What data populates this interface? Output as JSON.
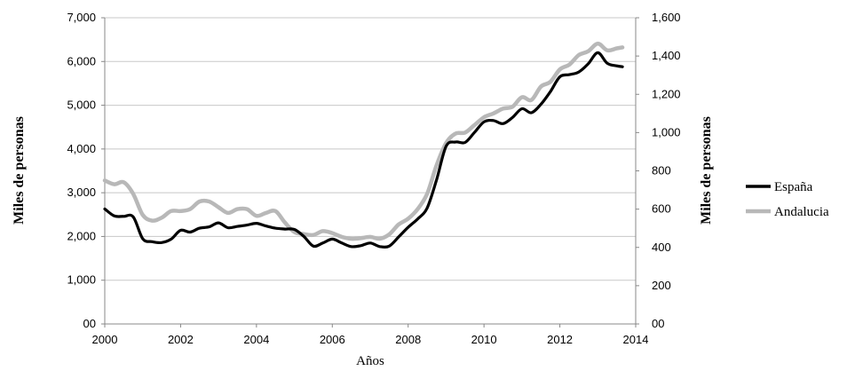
{
  "chart_data": {
    "type": "line",
    "xlabel": "Años",
    "ylabel_left": "Miles de personas",
    "ylabel_right": "Miles de personas",
    "xlim": [
      2000,
      2014
    ],
    "ylim_left": [
      0,
      7000
    ],
    "ylim_right": [
      0,
      1600
    ],
    "x_ticks": [
      "2000",
      "2002",
      "2004",
      "2006",
      "2008",
      "2010",
      "2012",
      "2014"
    ],
    "y_left_ticks": [
      "00",
      "1,000",
      "2,000",
      "3,000",
      "4,000",
      "5,000",
      "6,000",
      "7,000"
    ],
    "y_right_ticks": [
      "00",
      "200",
      "400",
      "600",
      "800",
      "1,000",
      "1,200",
      "1,400",
      "1,600"
    ],
    "grid": true,
    "legend_position": "right",
    "series": [
      {
        "name": "España",
        "axis": "left",
        "color": "#000000",
        "x": [
          2000.0,
          2000.25,
          2000.5,
          2000.75,
          2001.0,
          2001.25,
          2001.5,
          2001.75,
          2002.0,
          2002.25,
          2002.5,
          2002.75,
          2003.0,
          2003.25,
          2003.5,
          2003.75,
          2004.0,
          2004.25,
          2004.5,
          2004.75,
          2005.0,
          2005.25,
          2005.5,
          2005.75,
          2006.0,
          2006.25,
          2006.5,
          2006.75,
          2007.0,
          2007.25,
          2007.5,
          2007.75,
          2008.0,
          2008.25,
          2008.5,
          2008.75,
          2009.0,
          2009.25,
          2009.5,
          2009.75,
          2010.0,
          2010.25,
          2010.5,
          2010.75,
          2011.0,
          2011.25,
          2011.5,
          2011.75,
          2012.0,
          2012.25,
          2012.5,
          2012.75,
          2013.0,
          2013.25,
          2013.5,
          2013.65
        ],
        "values": [
          2630,
          2470,
          2460,
          2450,
          1950,
          1880,
          1860,
          1940,
          2140,
          2100,
          2190,
          2220,
          2310,
          2200,
          2230,
          2260,
          2300,
          2240,
          2190,
          2170,
          2160,
          2000,
          1780,
          1850,
          1940,
          1850,
          1770,
          1790,
          1850,
          1770,
          1780,
          1990,
          2210,
          2400,
          2650,
          3300,
          4060,
          4160,
          4150,
          4380,
          4620,
          4650,
          4580,
          4720,
          4920,
          4830,
          5020,
          5310,
          5650,
          5700,
          5760,
          5950,
          6200,
          5960,
          5900,
          5880
        ]
      },
      {
        "name": "Andalucia",
        "axis": "right",
        "color": "#b8b8b8",
        "x": [
          2000.0,
          2000.25,
          2000.5,
          2000.75,
          2001.0,
          2001.25,
          2001.5,
          2001.75,
          2002.0,
          2002.25,
          2002.5,
          2002.75,
          2003.0,
          2003.25,
          2003.5,
          2003.75,
          2004.0,
          2004.25,
          2004.5,
          2004.75,
          2005.0,
          2005.25,
          2005.5,
          2005.75,
          2006.0,
          2006.25,
          2006.5,
          2006.75,
          2007.0,
          2007.25,
          2007.5,
          2007.75,
          2008.0,
          2008.25,
          2008.5,
          2008.75,
          2009.0,
          2009.25,
          2009.5,
          2009.75,
          2010.0,
          2010.25,
          2010.5,
          2010.75,
          2011.0,
          2011.25,
          2011.5,
          2011.75,
          2012.0,
          2012.25,
          2012.5,
          2012.75,
          2013.0,
          2013.25,
          2013.5,
          2013.65
        ],
        "values": [
          750,
          730,
          740,
          680,
          570,
          540,
          555,
          590,
          590,
          600,
          640,
          640,
          610,
          580,
          600,
          600,
          565,
          580,
          590,
          530,
          480,
          470,
          465,
          485,
          475,
          455,
          445,
          448,
          455,
          445,
          468,
          520,
          550,
          600,
          680,
          830,
          945,
          995,
          1000,
          1040,
          1080,
          1100,
          1125,
          1135,
          1185,
          1170,
          1240,
          1265,
          1330,
          1355,
          1405,
          1425,
          1465,
          1430,
          1440,
          1445
        ]
      }
    ]
  }
}
